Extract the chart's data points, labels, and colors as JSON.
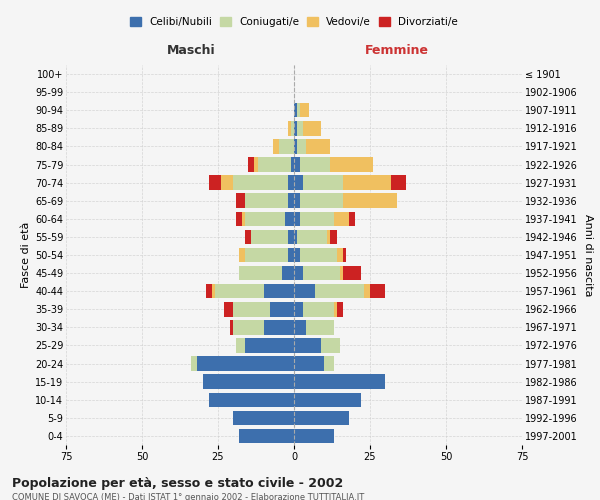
{
  "age_groups": [
    "0-4",
    "5-9",
    "10-14",
    "15-19",
    "20-24",
    "25-29",
    "30-34",
    "35-39",
    "40-44",
    "45-49",
    "50-54",
    "55-59",
    "60-64",
    "65-69",
    "70-74",
    "75-79",
    "80-84",
    "85-89",
    "90-94",
    "95-99",
    "100+"
  ],
  "birth_years": [
    "1997-2001",
    "1992-1996",
    "1987-1991",
    "1982-1986",
    "1977-1981",
    "1972-1976",
    "1967-1971",
    "1962-1966",
    "1957-1961",
    "1952-1956",
    "1947-1951",
    "1942-1946",
    "1937-1941",
    "1932-1936",
    "1927-1931",
    "1922-1926",
    "1917-1921",
    "1912-1916",
    "1907-1911",
    "1902-1906",
    "≤ 1901"
  ],
  "maschi": {
    "celibi": [
      18,
      20,
      28,
      30,
      32,
      16,
      10,
      8,
      10,
      4,
      2,
      2,
      3,
      2,
      2,
      1,
      0,
      0,
      0,
      0,
      0
    ],
    "coniugati": [
      0,
      0,
      0,
      0,
      2,
      3,
      10,
      12,
      16,
      14,
      14,
      12,
      13,
      14,
      18,
      11,
      5,
      1,
      0,
      0,
      0
    ],
    "vedovi": [
      0,
      0,
      0,
      0,
      0,
      0,
      0,
      0,
      1,
      0,
      2,
      0,
      1,
      0,
      4,
      1,
      2,
      1,
      0,
      0,
      0
    ],
    "divorziati": [
      0,
      0,
      0,
      0,
      0,
      0,
      1,
      3,
      2,
      0,
      0,
      2,
      2,
      3,
      4,
      2,
      0,
      0,
      0,
      0,
      0
    ]
  },
  "femmine": {
    "nubili": [
      13,
      18,
      22,
      30,
      10,
      9,
      4,
      3,
      7,
      3,
      2,
      1,
      2,
      2,
      3,
      2,
      1,
      1,
      1,
      0,
      0
    ],
    "coniugate": [
      0,
      0,
      0,
      0,
      3,
      6,
      9,
      10,
      16,
      12,
      12,
      10,
      11,
      14,
      13,
      10,
      3,
      2,
      1,
      0,
      0
    ],
    "vedove": [
      0,
      0,
      0,
      0,
      0,
      0,
      0,
      1,
      2,
      1,
      2,
      1,
      5,
      18,
      16,
      14,
      8,
      6,
      3,
      0,
      0
    ],
    "divorziate": [
      0,
      0,
      0,
      0,
      0,
      0,
      0,
      2,
      5,
      6,
      1,
      2,
      2,
      0,
      5,
      0,
      0,
      0,
      0,
      0,
      0
    ]
  },
  "color_celibi": "#3d6fad",
  "color_coniugati": "#c5d8a4",
  "color_vedovi": "#f0c060",
  "color_divorziati": "#cc2222",
  "xlim": 75,
  "title": "Popolazione per età, sesso e stato civile - 2002",
  "subtitle": "COMUNE DI SAVOCA (ME) - Dati ISTAT 1° gennaio 2002 - Elaborazione TUTTITALIA.IT",
  "ylabel_left": "Fasce di età",
  "ylabel_right": "Anni di nascita",
  "bg_color": "#f5f5f5",
  "grid_color": "#cccccc"
}
